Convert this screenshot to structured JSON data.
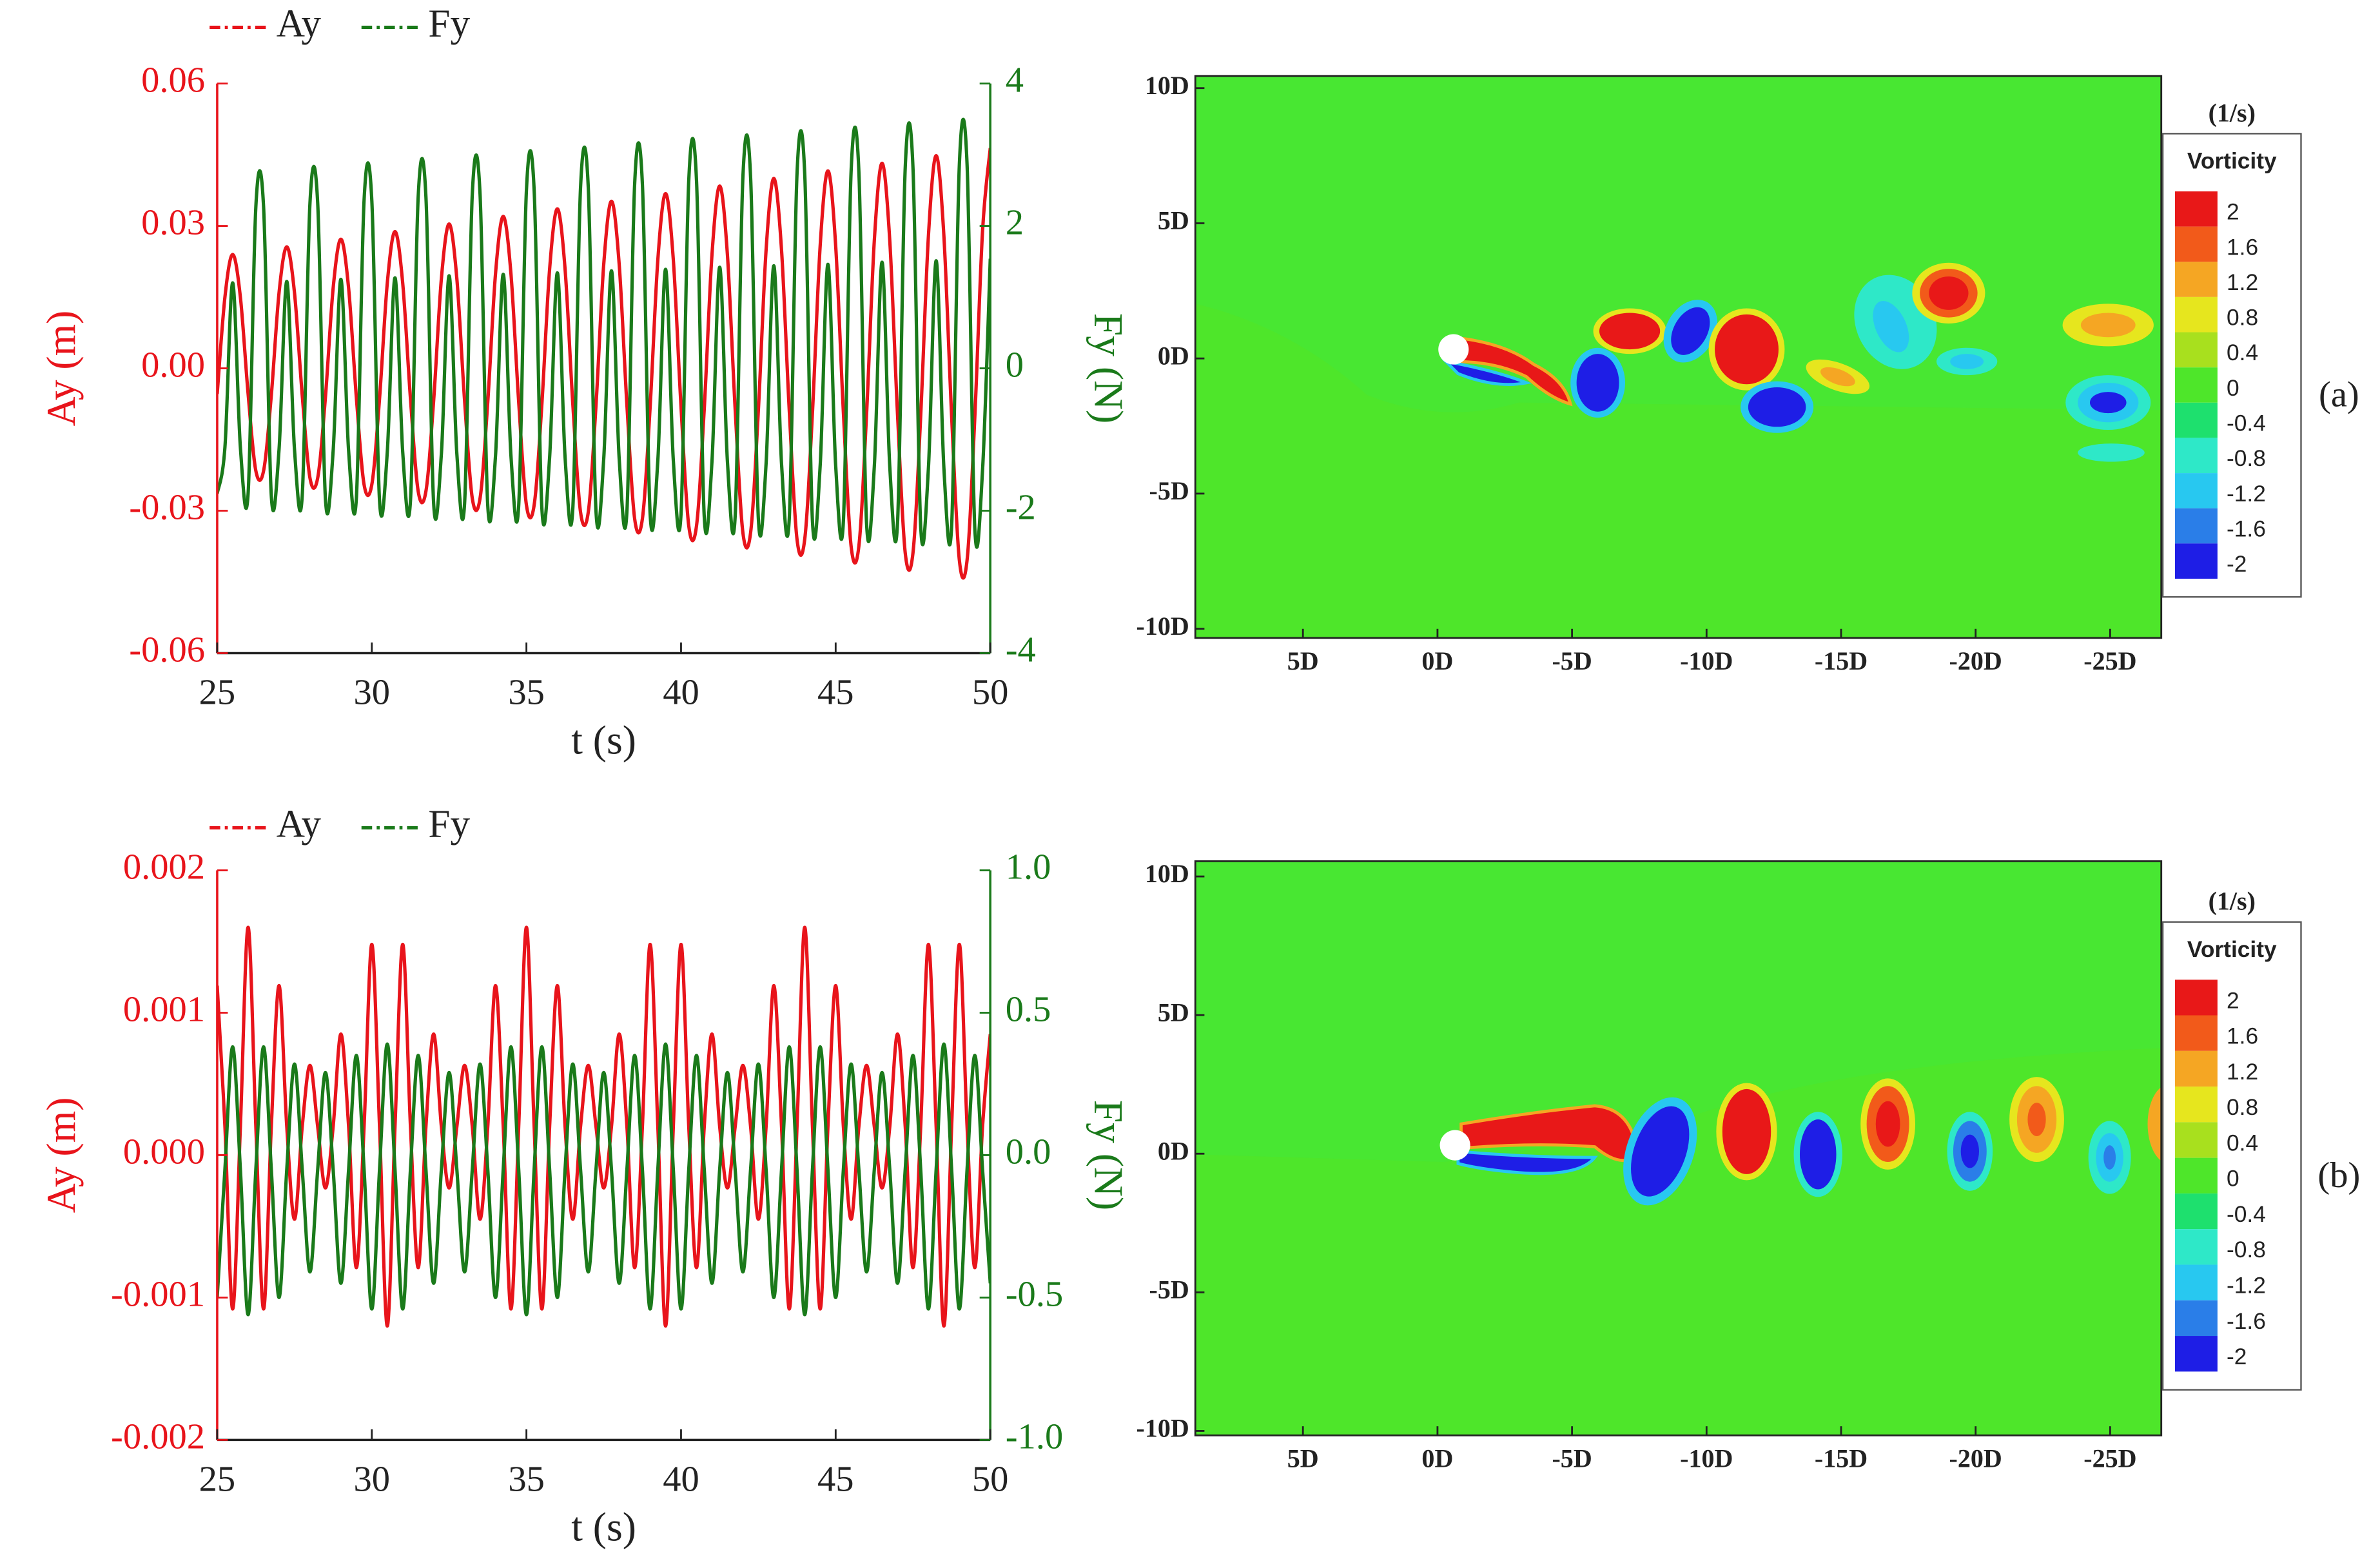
{
  "chart_data": [
    {
      "type": "line",
      "xlabel": "t (s)",
      "ylabel": "Ay (m)",
      "y2label": "Fy (N)",
      "xlim": [
        25,
        50
      ],
      "xticks": [
        25,
        30,
        35,
        40,
        45,
        50
      ],
      "ylim": [
        -0.06,
        0.06
      ],
      "yticks": [
        0.06,
        0.03,
        {
          "value": 0,
          "label": "0.00"
        },
        -0.03,
        -0.06
      ],
      "y2lim": [
        -4,
        4
      ],
      "y2ticks": [
        4,
        2,
        0,
        -2,
        -4
      ],
      "x": [
        25,
        25.25,
        25.5,
        25.75,
        26,
        26.25,
        26.5,
        26.75,
        27,
        27.25,
        27.5,
        27.75,
        28,
        28.25,
        28.5,
        28.75,
        29,
        29.25,
        29.5,
        29.75,
        30,
        30.25,
        30.5,
        30.75,
        31,
        31.25,
        31.5,
        31.75,
        32,
        32.25,
        32.5,
        32.75,
        33,
        33.25,
        33.5,
        33.75,
        34,
        34.25,
        34.5,
        34.75,
        35,
        35.25,
        35.5,
        35.75,
        36,
        36.25,
        36.5,
        36.75,
        37,
        37.25,
        37.5,
        37.75,
        38,
        38.25,
        38.5,
        38.75,
        39,
        39.25,
        39.5,
        39.75,
        40,
        40.25,
        40.5,
        40.75,
        41,
        41.25,
        41.5,
        41.75,
        42,
        42.25,
        42.5,
        42.75,
        43,
        43.25,
        43.5,
        43.75,
        44,
        44.25,
        44.5,
        44.75,
        45,
        45.25,
        45.5,
        45.75,
        46,
        46.25,
        46.5,
        46.75,
        47,
        47.25,
        47.5,
        47.75,
        48,
        48.25,
        48.5,
        48.75,
        49,
        49.25,
        49.5,
        49.75,
        50
      ],
      "series": [
        {
          "name": "Ay",
          "color": "#e8141b",
          "values": [
            -0.0054,
            0.015,
            0.024,
            0.015,
            -0.0054,
            -0.0216,
            -0.0216,
            -0.0057,
            0.0159,
            0.0256,
            0.0159,
            -0.0057,
            -0.0231,
            -0.0231,
            -0.0061,
            0.0169,
            0.0272,
            0.0169,
            -0.0061,
            -0.0245,
            -0.0245,
            -0.0064,
            0.0179,
            0.0288,
            0.0179,
            -0.0064,
            -0.0259,
            -0.0259,
            -0.0068,
            0.0189,
            0.0304,
            0.0189,
            -0.0068,
            -0.0274,
            -0.0274,
            -0.0071,
            0.0199,
            0.032,
            0.0199,
            -0.0071,
            -0.0288,
            -0.0288,
            -0.0075,
            0.0209,
            0.0336,
            0.0209,
            -0.0075,
            -0.0303,
            -0.0303,
            -0.0078,
            0.0219,
            0.0352,
            0.0219,
            -0.0078,
            -0.0317,
            -0.0317,
            -0.0082,
            0.0229,
            0.0368,
            0.0229,
            -0.0082,
            -0.0332,
            -0.0332,
            -0.0086,
            0.0239,
            0.0384,
            0.0239,
            -0.0086,
            -0.0346,
            -0.0346,
            -0.0089,
            0.0249,
            0.04,
            0.0249,
            -0.0089,
            -0.036,
            -0.036,
            -0.0093,
            0.0259,
            0.0416,
            0.0259,
            -0.0093,
            -0.0375,
            -0.0375,
            -0.0096,
            0.0269,
            0.0432,
            0.0269,
            -0.0096,
            -0.0389,
            -0.0389,
            -0.01,
            0.0279,
            0.0448,
            0.0279,
            -0.01,
            -0.0404,
            -0.0404,
            -0.0103,
            0.0289,
            0.0464
          ]
        },
        {
          "name": "Fy",
          "color": "#1a7a1a",
          "axis": "y2",
          "values": [
            -1.76,
            -1.11,
            1.2,
            -1.11,
            -1.76,
            2.27,
            2.27,
            -1.79,
            -1.14,
            1.22,
            -1.14,
            -1.79,
            2.32,
            2.32,
            -1.83,
            -1.16,
            1.25,
            -1.16,
            -1.83,
            2.36,
            2.36,
            -1.86,
            -1.18,
            1.27,
            -1.18,
            -1.86,
            2.41,
            2.41,
            -1.9,
            -1.2,
            1.3,
            -1.2,
            -1.9,
            2.45,
            2.45,
            -1.93,
            -1.23,
            1.32,
            -1.23,
            -1.93,
            2.5,
            2.5,
            -1.97,
            -1.25,
            1.34,
            -1.25,
            -1.97,
            2.54,
            2.54,
            -2.01,
            -1.27,
            1.37,
            -1.27,
            -2.01,
            2.59,
            2.59,
            -2.04,
            -1.29,
            1.39,
            -1.29,
            -2.04,
            2.64,
            2.64,
            -2.08,
            -1.31,
            1.42,
            -1.31,
            -2.08,
            2.68,
            2.68,
            -2.11,
            -1.34,
            1.44,
            -1.34,
            -2.11,
            2.73,
            2.73,
            -2.15,
            -1.36,
            1.46,
            -1.36,
            -2.15,
            2.77,
            2.77,
            -2.18,
            -1.38,
            1.49,
            -1.38,
            -2.18,
            2.82,
            2.82,
            -2.22,
            -1.4,
            1.51,
            -1.4,
            -2.22,
            2.86,
            2.86,
            -2.25,
            -1.43,
            1.54
          ]
        }
      ]
    },
    {
      "type": "contour",
      "annotation": "(a)",
      "xlim": [
        9,
        -26.9
      ],
      "ylim": [
        -10.34,
        10.45
      ],
      "xticks": [
        {
          "value": 5,
          "label": "5D"
        },
        {
          "value": 0,
          "label": "0D"
        },
        {
          "value": -5,
          "label": "-5D"
        },
        {
          "value": -10,
          "label": "-10D"
        },
        {
          "value": -15,
          "label": "-15D"
        },
        {
          "value": -20,
          "label": "-20D"
        },
        {
          "value": -25,
          "label": "-25D"
        }
      ],
      "yticks": [
        {
          "value": 10,
          "label": "10D"
        },
        {
          "value": 5,
          "label": "5D"
        },
        {
          "value": 0,
          "label": "0D"
        },
        {
          "value": -5,
          "label": "-5D"
        },
        {
          "value": -10,
          "label": "-10D"
        }
      ],
      "colorbar": {
        "unit": "(1/s)",
        "title": "Vorticity",
        "levels": [
          2,
          1.6,
          1.2,
          0.8,
          0.4,
          0,
          -0.4,
          -0.8,
          -1.2,
          -1.6,
          -2
        ],
        "colors": [
          "#e81818",
          "#f25a1a",
          "#f5a623",
          "#e6e61e",
          "#a8e01e",
          "#4ee62a",
          "#1ee06e",
          "#2ee8c8",
          "#28c8f0",
          "#2a7ee8",
          "#1e1ee6"
        ]
      }
    },
    {
      "type": "line",
      "xlabel": "t (s)",
      "ylabel": "Ay (m)",
      "y2label": "Fy (N)",
      "xlim": [
        25,
        50
      ],
      "xticks": [
        25,
        30,
        35,
        40,
        45,
        50
      ],
      "ylim": [
        -0.002,
        0.002
      ],
      "yticks": [
        0.002,
        0.001,
        {
          "value": 0,
          "label": "0.000"
        },
        -0.001,
        -0.002
      ],
      "y2lim": [
        -1,
        1
      ],
      "y2ticks": [
        {
          "value": 1,
          "label": "1.0"
        },
        0.5,
        {
          "value": 0,
          "label": "0.0"
        },
        -0.5,
        {
          "value": -1,
          "label": "-1.0"
        }
      ],
      "x": [
        25,
        25.25,
        25.5,
        25.75,
        26,
        26.25,
        26.5,
        26.75,
        27,
        27.25,
        27.5,
        27.75,
        28,
        28.25,
        28.5,
        28.75,
        29,
        29.25,
        29.5,
        29.75,
        30,
        30.25,
        30.5,
        30.75,
        31,
        31.25,
        31.5,
        31.75,
        32,
        32.25,
        32.5,
        32.75,
        33,
        33.25,
        33.5,
        33.75,
        34,
        34.25,
        34.5,
        34.75,
        35,
        35.25,
        35.5,
        35.75,
        36,
        36.25,
        36.5,
        36.75,
        37,
        37.25,
        37.5,
        37.75,
        38,
        38.25,
        38.5,
        38.75,
        39,
        39.25,
        39.5,
        39.75,
        40,
        40.25,
        40.5,
        40.75,
        41,
        41.25,
        41.5,
        41.75,
        42,
        42.25,
        42.5,
        42.75,
        43,
        43.25,
        43.5,
        43.75,
        44,
        44.25,
        44.5,
        44.75,
        45,
        45.25,
        45.5,
        45.75,
        46,
        46.25,
        46.5,
        46.75,
        47,
        47.25,
        47.5,
        47.75,
        48,
        48.25,
        48.5,
        48.75,
        49,
        49.25,
        49.5,
        49.75,
        50
      ],
      "series": [
        {
          "name": "Ay",
          "color": "#e8141b",
          "values": [
            0.00119,
            0.0002,
            -0.00108,
            0.0002,
            0.0016,
            0.0002,
            -0.00108,
            0.0002,
            0.00119,
            0.0002,
            -0.00045,
            0.0002,
            0.00063,
            0.0002,
            -0.00023,
            0.0002,
            0.00085,
            0.0002,
            -0.00079,
            0.0002,
            0.00148,
            0.0002,
            -0.0012,
            0.0002,
            0.00148,
            0.0002,
            -0.00079,
            0.0002,
            0.00085,
            0.0002,
            -0.00023,
            0.0002,
            0.00063,
            0.0002,
            -0.00045,
            0.0002,
            0.00119,
            0.0002,
            -0.00108,
            0.0002,
            0.0016,
            0.0002,
            -0.00108,
            0.0002,
            0.00119,
            0.0002,
            -0.00045,
            0.0002,
            0.00063,
            0.0002,
            -0.00023,
            0.0002,
            0.00085,
            0.0002,
            -0.00079,
            0.0002,
            0.00148,
            0.0002,
            -0.0012,
            0.0002,
            0.00148,
            0.0002,
            -0.00079,
            0.0002,
            0.00085,
            0.0002,
            -0.00023,
            0.0002,
            0.00063,
            0.0002,
            -0.00045,
            0.0002,
            0.00119,
            0.0002,
            -0.00108,
            0.0002,
            0.0016,
            0.0002,
            -0.00108,
            0.0002,
            0.00119,
            0.0002,
            -0.00045,
            0.0002,
            0.00063,
            0.0002,
            -0.00023,
            0.0002,
            0.00085,
            0.0002,
            -0.00079,
            0.0002,
            0.00148,
            0.0002,
            -0.0012,
            0.0002,
            0.00148,
            0.0002,
            -0.00079,
            0.0002,
            0.00085
          ]
        },
        {
          "name": "Fy",
          "color": "#1a7a1a",
          "axis": "y2",
          "values": [
            -0.5,
            -0.05,
            0.38,
            -0.05,
            -0.56,
            -0.05,
            0.38,
            -0.05,
            -0.5,
            -0.05,
            0.32,
            -0.05,
            -0.41,
            -0.05,
            0.29,
            -0.05,
            -0.45,
            -0.05,
            0.35,
            -0.05,
            -0.54,
            -0.05,
            0.39,
            -0.05,
            -0.54,
            -0.05,
            0.35,
            -0.05,
            -0.45,
            -0.05,
            0.29,
            -0.05,
            -0.41,
            -0.05,
            0.32,
            -0.05,
            -0.5,
            -0.05,
            0.38,
            -0.05,
            -0.56,
            -0.05,
            0.38,
            -0.05,
            -0.5,
            -0.05,
            0.32,
            -0.05,
            -0.41,
            -0.05,
            0.29,
            -0.05,
            -0.45,
            -0.05,
            0.35,
            -0.05,
            -0.54,
            -0.05,
            0.39,
            -0.05,
            -0.54,
            -0.05,
            0.35,
            -0.05,
            -0.45,
            -0.05,
            0.29,
            -0.05,
            -0.41,
            -0.05,
            0.32,
            -0.05,
            -0.5,
            -0.05,
            0.38,
            -0.05,
            -0.56,
            -0.05,
            0.38,
            -0.05,
            -0.5,
            -0.05,
            0.32,
            -0.05,
            -0.41,
            -0.05,
            0.29,
            -0.05,
            -0.45,
            -0.05,
            0.35,
            -0.05,
            -0.54,
            -0.05,
            0.39,
            -0.05,
            -0.54,
            -0.05,
            0.35,
            -0.05,
            -0.45
          ]
        }
      ]
    },
    {
      "type": "contour",
      "annotation": "(b)",
      "xlim": [
        9,
        -26.9
      ],
      "ylim": [
        -10.16,
        10.55
      ],
      "xticks": [
        {
          "value": 5,
          "label": "5D"
        },
        {
          "value": 0,
          "label": "0D"
        },
        {
          "value": -5,
          "label": "-5D"
        },
        {
          "value": -10,
          "label": "-10D"
        },
        {
          "value": -15,
          "label": "-15D"
        },
        {
          "value": -20,
          "label": "-20D"
        },
        {
          "value": -25,
          "label": "-25D"
        }
      ],
      "yticks": [
        {
          "value": 10,
          "label": "10D"
        },
        {
          "value": 5,
          "label": "5D"
        },
        {
          "value": 0,
          "label": "0D"
        },
        {
          "value": -5,
          "label": "-5D"
        },
        {
          "value": -10,
          "label": "-10D"
        }
      ],
      "colorbar": {
        "unit": "(1/s)",
        "title": "Vorticity",
        "levels": [
          2,
          1.6,
          1.2,
          0.8,
          0.4,
          0,
          -0.4,
          -0.8,
          -1.2,
          -1.6,
          -2
        ],
        "colors": [
          "#e81818",
          "#f25a1a",
          "#f5a623",
          "#e6e61e",
          "#a8e01e",
          "#4ee62a",
          "#1ee06e",
          "#2ee8c8",
          "#28c8f0",
          "#2a7ee8",
          "#1e1ee6"
        ]
      }
    }
  ]
}
